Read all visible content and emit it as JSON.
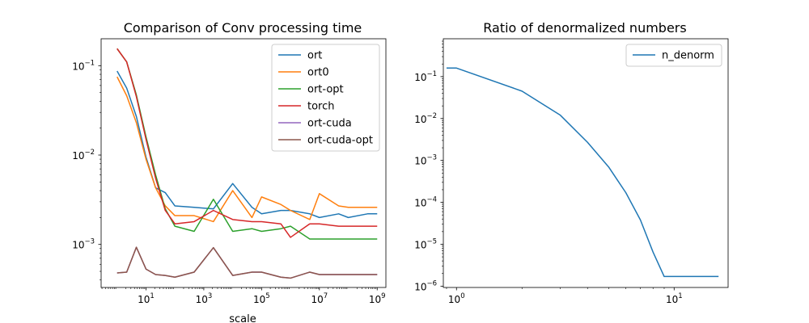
{
  "chart_data": [
    {
      "type": "line",
      "title": "Comparison of Conv processing time",
      "xlabel": "scale",
      "ylabel": "",
      "xscale": "log",
      "yscale": "log",
      "xlim": [
        0.28,
        2000000000.0
      ],
      "ylim": [
        0.00033,
        0.2
      ],
      "xticks": [
        {
          "value": 10,
          "base": "10",
          "exp": "1"
        },
        {
          "value": 1000,
          "base": "10",
          "exp": "3"
        },
        {
          "value": 100000,
          "base": "10",
          "exp": "5"
        },
        {
          "value": 10000000,
          "base": "10",
          "exp": "7"
        },
        {
          "value": 1000000000,
          "base": "10",
          "exp": "9"
        }
      ],
      "yticks": [
        {
          "value": 0.001,
          "base": "10",
          "exp": "−3"
        },
        {
          "value": 0.01,
          "base": "10",
          "exp": "−2"
        },
        {
          "value": 0.1,
          "base": "10",
          "exp": "−1"
        }
      ],
      "legend_position": "top-right",
      "x": [
        1,
        2.15,
        4.64,
        10,
        21.5,
        46.4,
        100,
        464,
        2150,
        10000,
        46400,
        100000,
        464000,
        1000000,
        4640000,
        10000000,
        46400000,
        100000000,
        464000000,
        1000000000
      ],
      "series": [
        {
          "name": "ort",
          "color": "#1f77b4",
          "values": [
            0.087,
            0.056,
            0.027,
            0.0095,
            0.0043,
            0.0038,
            0.0027,
            0.0026,
            0.0025,
            0.0048,
            0.0026,
            0.0022,
            0.0024,
            0.0024,
            0.0022,
            0.002,
            0.0022,
            0.002,
            0.0022,
            0.0022
          ]
        },
        {
          "name": "ort0",
          "color": "#ff7f0e",
          "values": [
            0.075,
            0.046,
            0.023,
            0.009,
            0.0043,
            0.0027,
            0.0021,
            0.0021,
            0.0018,
            0.004,
            0.002,
            0.0034,
            0.0028,
            0.0024,
            0.0019,
            0.0037,
            0.0027,
            0.0026,
            0.0026,
            0.0026
          ]
        },
        {
          "name": "ort-opt",
          "color": "#2ca02c",
          "values": [
            0.155,
            0.11,
            0.047,
            0.016,
            0.006,
            0.0025,
            0.0016,
            0.0014,
            0.0032,
            0.0014,
            0.0015,
            0.0014,
            0.0015,
            0.0016,
            0.00115,
            0.00115,
            0.00115,
            0.00115,
            0.00115,
            0.00115
          ]
        },
        {
          "name": "torch",
          "color": "#d62728",
          "values": [
            0.155,
            0.11,
            0.045,
            0.015,
            0.0055,
            0.0024,
            0.0017,
            0.0018,
            0.0024,
            0.0019,
            0.0018,
            0.0018,
            0.0017,
            0.0012,
            0.0017,
            0.0017,
            0.0016,
            0.0016,
            0.0016,
            0.0016
          ]
        },
        {
          "name": "ort-cuda",
          "color": "#9467bd",
          "values": [
            0.00048,
            0.00049,
            0.00093,
            0.00053,
            0.00046,
            0.00045,
            0.00043,
            0.00049,
            0.00092,
            0.00045,
            0.00049,
            0.00049,
            0.00043,
            0.00042,
            0.00049,
            0.00046,
            0.00046,
            0.00046,
            0.00046,
            0.00046
          ]
        },
        {
          "name": "ort-cuda-opt",
          "color": "#8c564b",
          "values": [
            0.00048,
            0.00049,
            0.00093,
            0.00053,
            0.00046,
            0.00045,
            0.00043,
            0.00049,
            0.00092,
            0.00045,
            0.00049,
            0.00049,
            0.00043,
            0.00042,
            0.00049,
            0.00046,
            0.00046,
            0.00046,
            0.00046,
            0.00046
          ]
        }
      ]
    },
    {
      "type": "line",
      "title": "Ratio of denormalized numbers",
      "xlabel": "",
      "ylabel": "",
      "xscale": "log",
      "yscale": "log",
      "xlim": [
        0.87,
        17.7
      ],
      "ylim": [
        9.3e-07,
        0.8
      ],
      "xticks": [
        {
          "value": 1,
          "base": "10",
          "exp": "0"
        },
        {
          "value": 10,
          "base": "10",
          "exp": "1"
        }
      ],
      "yticks": [
        {
          "value": 1e-06,
          "base": "10",
          "exp": "−6"
        },
        {
          "value": 1e-05,
          "base": "10",
          "exp": "−5"
        },
        {
          "value": 0.0001,
          "base": "10",
          "exp": "−4"
        },
        {
          "value": 0.001,
          "base": "10",
          "exp": "−3"
        },
        {
          "value": 0.01,
          "base": "10",
          "exp": "−2"
        },
        {
          "value": 0.1,
          "base": "10",
          "exp": "−1"
        }
      ],
      "legend_position": "top-right",
      "x": [
        0.9,
        1,
        2,
        3,
        4,
        5,
        6,
        7,
        8,
        9,
        10,
        11,
        12,
        13,
        14,
        15,
        16
      ],
      "series": [
        {
          "name": "n_denorm",
          "color": "#1f77b4",
          "values": [
            0.16,
            0.16,
            0.045,
            0.012,
            0.0027,
            0.0007,
            0.00017,
            3.8e-05,
            6.5e-06,
            1.7e-06,
            1.7e-06,
            1.7e-06,
            1.7e-06,
            1.7e-06,
            1.7e-06,
            1.7e-06,
            1.7e-06
          ]
        }
      ]
    }
  ]
}
